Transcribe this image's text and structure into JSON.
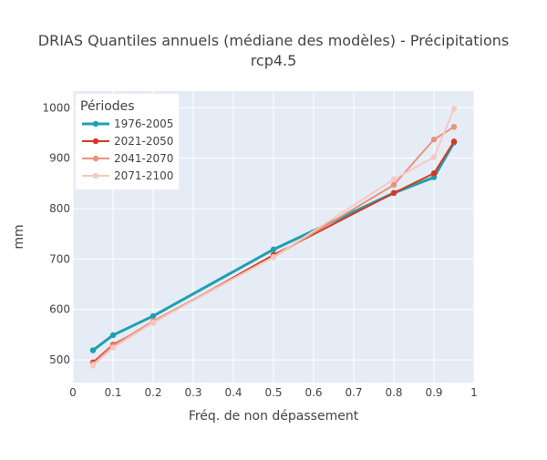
{
  "chart_data": {
    "type": "line",
    "title": "DRIAS Quantiles annuels (médiane des modèles) - Précipitations",
    "subtitle": "rcp4.5",
    "xlabel": "Fréq. de non dépassement",
    "ylabel": "mm",
    "xlim": [
      0,
      1
    ],
    "ylim": [
      455,
      1033
    ],
    "x_ticks": [
      "0",
      "0.1",
      "0.2",
      "0.3",
      "0.4",
      "0.5",
      "0.6",
      "0.7",
      "0.8",
      "0.9",
      "1"
    ],
    "y_ticks": [
      "500",
      "600",
      "700",
      "800",
      "900",
      "1000"
    ],
    "grid": true,
    "legend_title": "Périodes",
    "legend_position": "top-left",
    "series": [
      {
        "name": "1976-2005",
        "color": "#1f9fb0",
        "x": [
          0.05,
          0.1,
          0.2,
          0.5,
          0.8,
          0.9,
          0.95
        ],
        "values": [
          519,
          549,
          587,
          719,
          831,
          862,
          931
        ]
      },
      {
        "name": "2021-2050",
        "color": "#d9381e",
        "x": [
          0.05,
          0.1,
          0.2,
          0.5,
          0.8,
          0.9,
          0.95
        ],
        "values": [
          495,
          530,
          574,
          708,
          831,
          870,
          933
        ]
      },
      {
        "name": "2041-2070",
        "color": "#e8927c",
        "x": [
          0.05,
          0.1,
          0.2,
          0.5,
          0.8,
          0.9,
          0.95
        ],
        "values": [
          492,
          528,
          577,
          704,
          847,
          937,
          962
        ]
      },
      {
        "name": "2071-2100",
        "color": "#f7c9c2",
        "x": [
          0.05,
          0.1,
          0.2,
          0.5,
          0.8,
          0.9,
          0.95
        ],
        "values": [
          489,
          524,
          574,
          704,
          858,
          902,
          998
        ]
      }
    ]
  }
}
